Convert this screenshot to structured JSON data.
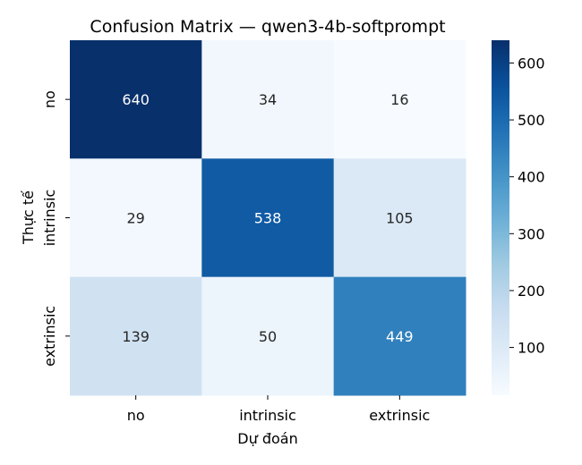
{
  "chart_data": {
    "type": "heatmap",
    "title": "Confusion Matrix — qwen3-4b-softprompt",
    "xlabel": "Dự đoán",
    "ylabel": "Thực tế",
    "x_categories": [
      "no",
      "intrinsic",
      "extrinsic"
    ],
    "y_categories": [
      "no",
      "intrinsic",
      "extrinsic"
    ],
    "values": [
      [
        640,
        34,
        16
      ],
      [
        29,
        538,
        105
      ],
      [
        139,
        50,
        449
      ]
    ],
    "colormap": "Blues",
    "color_range": [
      16,
      640
    ],
    "colorbar_ticks": [
      100,
      200,
      300,
      400,
      500,
      600
    ],
    "colors": {
      "low": "#f7fbff",
      "high": "#08306b"
    }
  }
}
